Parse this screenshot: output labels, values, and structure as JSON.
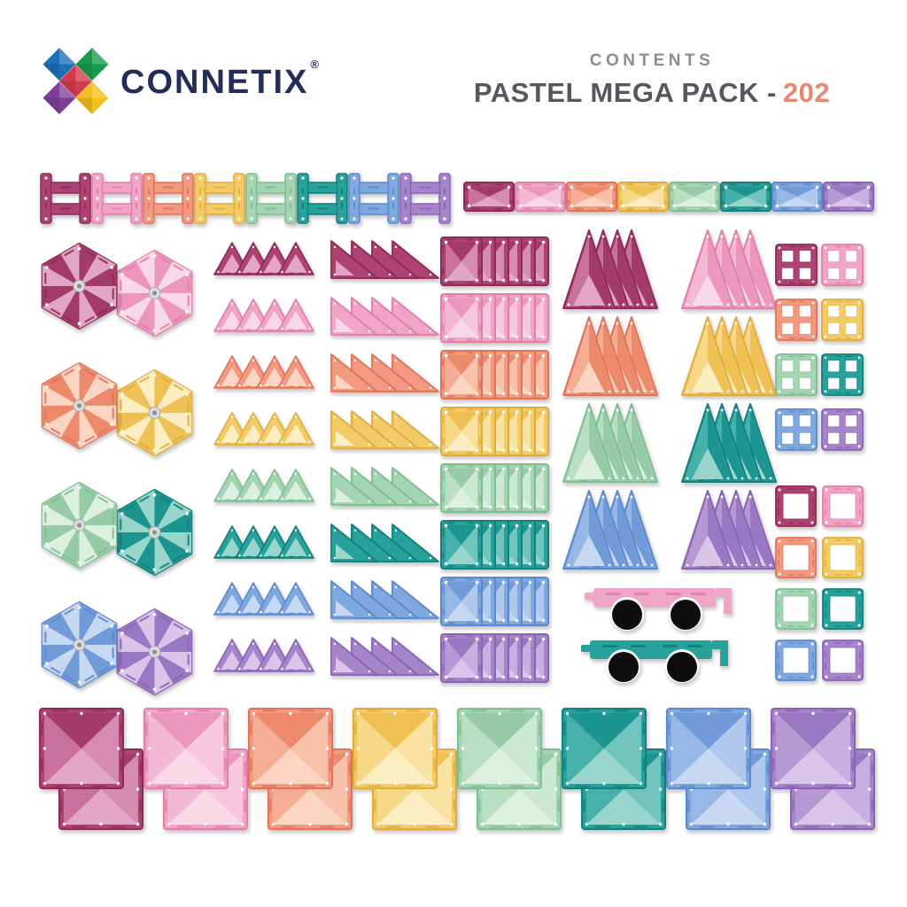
{
  "header": {
    "brand": "CONNETIX",
    "registered": "®",
    "contents_label": "CONTENTS",
    "pack_name": "PASTEL MEGA PACK -",
    "pack_count": "202"
  },
  "text_colors": {
    "brand": "#232d5a",
    "contents": "#8b8e91",
    "title": "#55585c",
    "count": "#e8876e"
  },
  "logo": {
    "colors": {
      "top_left": "#1d6fb7",
      "top_right": "#189b4d",
      "center": "#d33b4d",
      "bottom_left": "#7e3f98",
      "bottom_right": "#f2c11d"
    }
  },
  "palette_order": [
    "berry",
    "pink",
    "peach",
    "yellow",
    "mint",
    "teal",
    "blue",
    "purple"
  ],
  "colors": {
    "berry": {
      "dark": "#8e2c58",
      "deep": "#a23a67",
      "base": "#ae4273",
      "mid": "#c9719d",
      "mid2": "#d68bb0",
      "light": "#e2a6c4"
    },
    "pink": {
      "dark": "#e27ea9",
      "deep": "#eb96ba",
      "base": "#f0a5c6",
      "mid": "#f3b8d2",
      "mid2": "#f7c8dd",
      "light": "#fad9e7"
    },
    "peach": {
      "dark": "#e0735a",
      "deep": "#ee8a6c",
      "base": "#f29980",
      "mid": "#f5ae94",
      "mid2": "#f8c2aa",
      "light": "#fbd5c2"
    },
    "yellow": {
      "dark": "#e0ad3c",
      "deep": "#efc052",
      "base": "#f3cb66",
      "mid": "#f6d886",
      "mid2": "#f9e2a2",
      "light": "#fcedc2"
    },
    "mint": {
      "dark": "#7fbe92",
      "deep": "#97cba6",
      "base": "#a5d4b2",
      "mid": "#b8dfc2",
      "mid2": "#cbe8d2",
      "light": "#dcf0e1"
    },
    "teal": {
      "dark": "#157f7b",
      "deep": "#1e948f",
      "base": "#25a19b",
      "mid": "#45b1aa",
      "mid2": "#6fc4bc",
      "light": "#97d5cd"
    },
    "blue": {
      "dark": "#5c89ce",
      "deep": "#6f9bd8",
      "base": "#7ea8de",
      "mid": "#97b8e6",
      "mid2": "#b0c8ed",
      "light": "#c6d8f2"
    },
    "purple": {
      "dark": "#8a64b5",
      "deep": "#9a77c3",
      "base": "#a684ca",
      "mid": "#b798d5",
      "mid2": "#c9aee0",
      "light": "#d9c5ea"
    }
  },
  "misc": {
    "wheel": "#0f0f0f",
    "pane": "#ffffff",
    "hex_center": "#dcdcdc",
    "hex_center_ring": "#a9a9a9",
    "hex_center_dot": "#8f8f8f"
  },
  "pieces": {
    "h_row": {
      "shape": "h-piece",
      "count_per_color": 1
    },
    "rect_row": {
      "shape": "rectangle",
      "count_per_color": 1
    },
    "hex_pairs": {
      "shape": "hexagon",
      "pairs": [
        [
          "berry",
          "pink"
        ],
        [
          "peach",
          "yellow"
        ],
        [
          "mint",
          "teal"
        ],
        [
          "blue",
          "purple"
        ]
      ],
      "count_per_color": 1
    },
    "eq_triangle_rows": {
      "shape": "small-triangle",
      "count_per_color": 4
    },
    "right_triangle_rows": {
      "shape": "right-triangle",
      "count_per_color": 4
    },
    "square_stacks": {
      "shape": "square",
      "count_per_color": 6
    },
    "tall_triangle_clusters": {
      "shape": "tall-triangle",
      "pairs": [
        [
          "berry",
          "pink"
        ],
        [
          "peach",
          "yellow"
        ],
        [
          "mint",
          "teal"
        ],
        [
          "blue",
          "purple"
        ]
      ],
      "count_per_color": 4
    },
    "window_grid": {
      "shape": "window-square",
      "pairs": [
        [
          "berry",
          "pink"
        ],
        [
          "peach",
          "yellow"
        ],
        [
          "mint",
          "teal"
        ],
        [
          "blue",
          "purple"
        ]
      ],
      "count_per_color": 1
    },
    "frame_grid": {
      "shape": "border-square",
      "pairs": [
        [
          "berry",
          "pink"
        ],
        [
          "peach",
          "yellow"
        ],
        [
          "mint",
          "teal"
        ],
        [
          "blue",
          "purple"
        ]
      ],
      "count_per_color": 1
    },
    "cars": {
      "shape": "car-base",
      "colors": [
        "pink",
        "teal"
      ],
      "count_per_color": 1
    },
    "big_square_pairs": {
      "shape": "large-square",
      "count_per_color": 2
    }
  }
}
